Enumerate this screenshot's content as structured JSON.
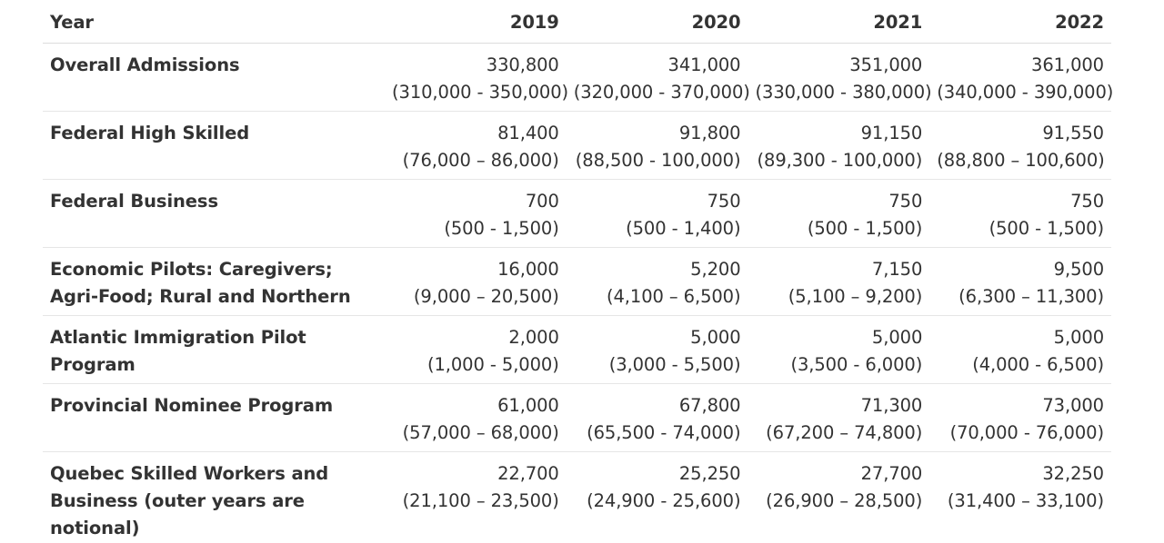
{
  "table": {
    "header": {
      "label": "Year",
      "years": [
        "2019",
        "2020",
        "2021",
        "2022"
      ]
    },
    "rows": [
      {
        "label": "Overall Admissions",
        "cells": [
          {
            "value": "330,800",
            "range": "(310,000 - 350,000)"
          },
          {
            "value": "341,000",
            "range": "(320,000 - 370,000)"
          },
          {
            "value": "351,000",
            "range": "(330,000 - 380,000)"
          },
          {
            "value": "361,000",
            "range": "(340,000 - 390,000)"
          }
        ]
      },
      {
        "label": "Federal High Skilled",
        "cells": [
          {
            "value": "81,400",
            "range": "(76,000 – 86,000)"
          },
          {
            "value": "91,800",
            "range": "(88,500 - 100,000)"
          },
          {
            "value": "91,150",
            "range": "(89,300 - 100,000)"
          },
          {
            "value": "91,550",
            "range": "(88,800 – 100,600)"
          }
        ]
      },
      {
        "label": "Federal Business",
        "cells": [
          {
            "value": "700",
            "range": "(500 - 1,500)"
          },
          {
            "value": "750",
            "range": "(500 - 1,400)"
          },
          {
            "value": "750",
            "range": "(500 - 1,500)"
          },
          {
            "value": "750",
            "range": "(500 - 1,500)"
          }
        ]
      },
      {
        "label": "Economic Pilots: Caregivers; Agri-Food; Rural and Northern",
        "cells": [
          {
            "value": "16,000",
            "range": "(9,000 – 20,500)"
          },
          {
            "value": "5,200",
            "range": "(4,100 – 6,500)"
          },
          {
            "value": "7,150",
            "range": "(5,100 – 9,200)"
          },
          {
            "value": "9,500",
            "range": "(6,300 – 11,300)"
          }
        ]
      },
      {
        "label": "Atlantic Immigration Pilot Program",
        "cells": [
          {
            "value": "2,000",
            "range": "(1,000 - 5,000)"
          },
          {
            "value": "5,000",
            "range": "(3,000 - 5,500)"
          },
          {
            "value": "5,000",
            "range": "(3,500 - 6,000)"
          },
          {
            "value": "5,000",
            "range": "(4,000 - 6,500)"
          }
        ]
      },
      {
        "label": "Provincial Nominee Program",
        "cells": [
          {
            "value": "61,000",
            "range": "(57,000 – 68,000)"
          },
          {
            "value": "67,800",
            "range": "(65,500 - 74,000)"
          },
          {
            "value": "71,300",
            "range": "(67,200 – 74,800)"
          },
          {
            "value": "73,000",
            "range": "(70,000 - 76,000)"
          }
        ]
      },
      {
        "label": "Quebec Skilled Workers and Business (outer years are notional)",
        "cells": [
          {
            "value": "22,700",
            "range": "(21,100 – 23,500)"
          },
          {
            "value": "25,250",
            "range": "(24,900 - 25,600)"
          },
          {
            "value": "27,700",
            "range": "(26,900 – 28,500)"
          },
          {
            "value": "32,250",
            "range": "(31,400 – 33,100)"
          }
        ]
      }
    ]
  }
}
